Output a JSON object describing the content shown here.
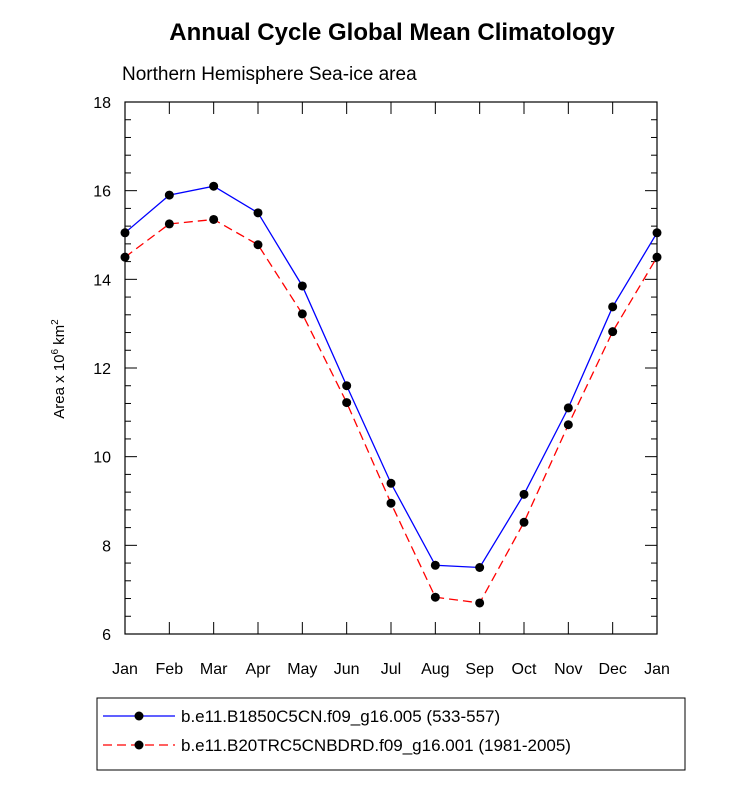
{
  "chart_data": {
    "type": "line",
    "title": "Annual Cycle Global Mean Climatology",
    "subtitle": "Northern Hemisphere Sea-ice area",
    "ylabel": "Area x 10",
    "ylabel_exp": "6",
    "ylabel_unit": " km",
    "ylabel_unit_exp": "2",
    "xlabel": "",
    "categories": [
      "Jan",
      "Feb",
      "Mar",
      "Apr",
      "May",
      "Jun",
      "Jul",
      "Aug",
      "Sep",
      "Oct",
      "Nov",
      "Dec",
      "Jan"
    ],
    "ylim": [
      6,
      18
    ],
    "yticks": [
      6,
      8,
      10,
      12,
      14,
      16,
      18
    ],
    "grid": false,
    "legend_position": "bottom",
    "series": [
      {
        "name": "b.e11.B1850C5CN.f09_g16.005 (533-557)",
        "color": "#0000ff",
        "dash": "solid",
        "marker": "filled-circle",
        "values": [
          15.05,
          15.9,
          16.1,
          15.5,
          13.85,
          11.6,
          9.4,
          7.55,
          7.5,
          9.15,
          11.1,
          13.38,
          15.05
        ]
      },
      {
        "name": "b.e11.B20TRC5CNBDRD.f09_g16.001 (1981-2005)",
        "color": "#ff0000",
        "dash": "dashed",
        "marker": "filled-circle",
        "values": [
          14.5,
          15.25,
          15.35,
          14.78,
          13.22,
          11.22,
          8.95,
          6.83,
          6.7,
          8.52,
          10.72,
          12.82,
          14.5
        ]
      }
    ]
  }
}
